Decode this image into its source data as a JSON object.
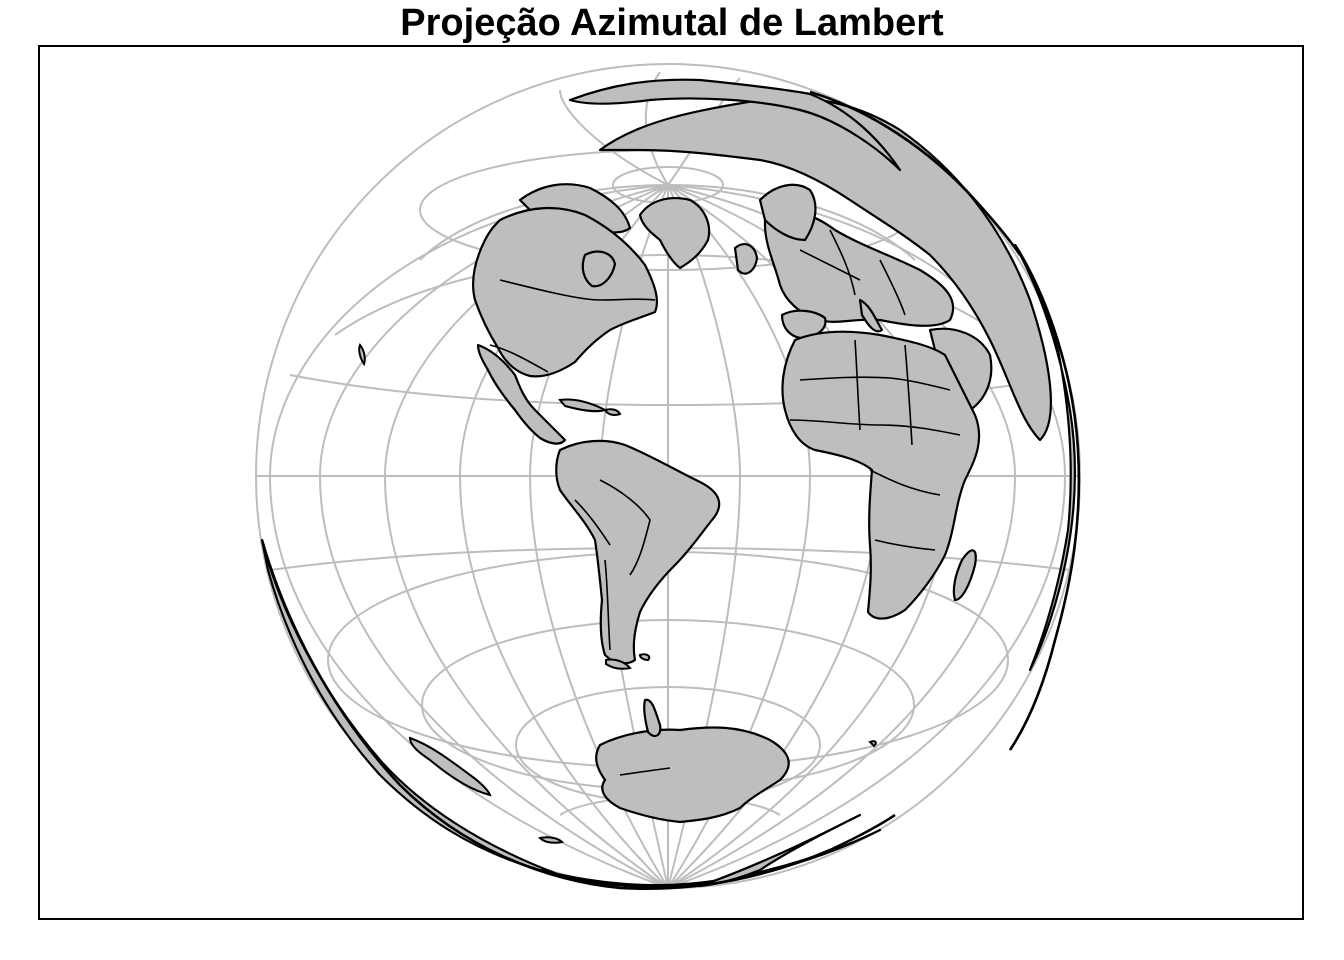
{
  "map": {
    "title": "Projeção Azimutal de Lambert",
    "projection": "Lambert azimuthal equal-area",
    "graticule": {
      "meridians": "every 15°",
      "parallels": "every 15°",
      "color": "#bdbdbd"
    },
    "land_color": "#bebebe",
    "outline_color": "#000000",
    "regions": [
      "Greenland",
      "North America",
      "Central America",
      "Caribbean",
      "South America",
      "Europe",
      "Africa",
      "Madagascar",
      "Antarctica",
      "Asia (limb)"
    ]
  }
}
